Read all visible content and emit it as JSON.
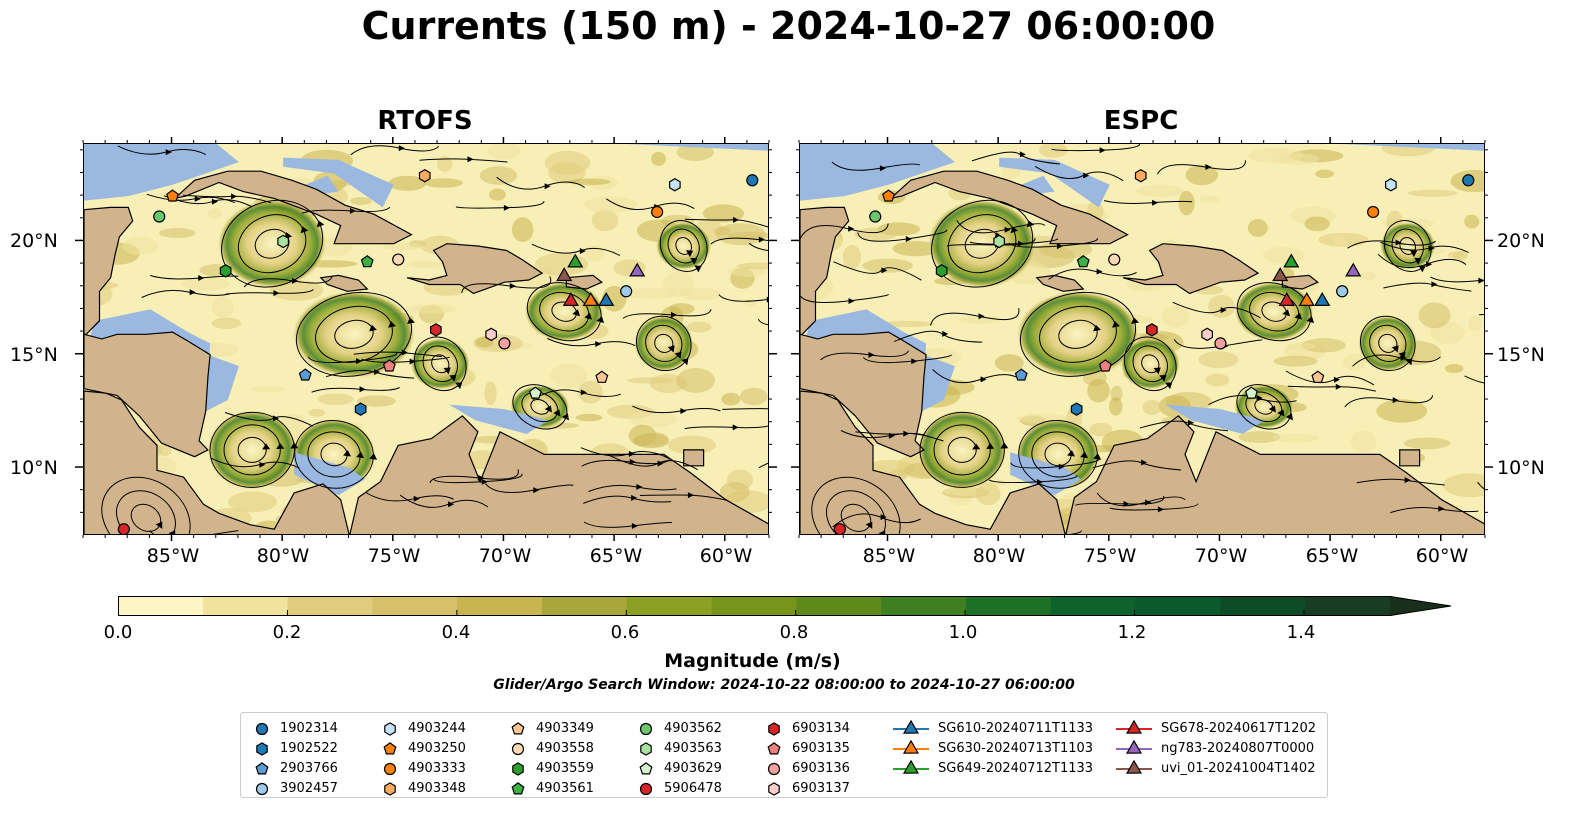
{
  "title": "Currents (150 m) - 2024-10-27 06:00:00",
  "panels": [
    {
      "title": "RTOFS"
    },
    {
      "title": "ESPC"
    }
  ],
  "x_ticks": [
    "85°W",
    "80°W",
    "75°W",
    "70°W",
    "65°W",
    "60°W"
  ],
  "y_ticks": [
    "20°N",
    "15°N",
    "10°N"
  ],
  "colorbar": {
    "label": "Magnitude (m/s)",
    "ticks": [
      "0.0",
      "0.2",
      "0.4",
      "0.6",
      "0.8",
      "1.0",
      "1.2",
      "1.4"
    ],
    "colors": [
      "#fbf6c4",
      "#f1e29e",
      "#e0cc7c",
      "#d6c06a",
      "#c8b450",
      "#a9a63b",
      "#8ca123",
      "#76951a",
      "#5e8a1c",
      "#3f7e21",
      "#1f7027",
      "#0e632d",
      "#0a5a2d",
      "#104b27",
      "#173d22",
      "#1a2f1b"
    ]
  },
  "search_window": "Glider/Argo Search Window: 2024-10-22 08:00:00 to 2024-10-27 06:00:00",
  "colors": {
    "ocean_shallow": "#9ab8e0",
    "land": "#d2b48c",
    "field_low": "#f7efb6",
    "field_high": "#0e632d"
  },
  "legend": [
    {
      "label": "1902314",
      "marker": "circle",
      "color": "#1f77b4"
    },
    {
      "label": "1902522",
      "marker": "hexagon",
      "color": "#1f77b4"
    },
    {
      "label": "2903766",
      "marker": "pentagon",
      "color": "#5b9bd5"
    },
    {
      "label": "3902457",
      "marker": "circle",
      "color": "#9ecae9"
    },
    {
      "label": "4903244",
      "marker": "hexagon",
      "color": "#c6e2f5"
    },
    {
      "label": "4903250",
      "marker": "pentagon",
      "color": "#ff7f0e"
    },
    {
      "label": "4903333",
      "marker": "circle",
      "color": "#ff7f0e"
    },
    {
      "label": "4903348",
      "marker": "hexagon",
      "color": "#ffab5e"
    },
    {
      "label": "4903349",
      "marker": "pentagon",
      "color": "#fdc58f"
    },
    {
      "label": "4903558",
      "marker": "circle",
      "color": "#fdd9b5"
    },
    {
      "label": "4903559",
      "marker": "hexagon",
      "color": "#2ca02c"
    },
    {
      "label": "4903561",
      "marker": "pentagon",
      "color": "#3cb043"
    },
    {
      "label": "4903562",
      "marker": "circle",
      "color": "#6cc66c"
    },
    {
      "label": "4903563",
      "marker": "hexagon",
      "color": "#a9e2a0"
    },
    {
      "label": "4903629",
      "marker": "pentagon",
      "color": "#d4f2cc"
    },
    {
      "label": "5906478",
      "marker": "circle",
      "color": "#d62728"
    },
    {
      "label": "6903134",
      "marker": "hexagon",
      "color": "#d62728"
    },
    {
      "label": "6903135",
      "marker": "pentagon",
      "color": "#f07f80"
    },
    {
      "label": "6903136",
      "marker": "circle",
      "color": "#f4a0a0"
    },
    {
      "label": "6903137",
      "marker": "hexagon",
      "color": "#fbcdcd"
    },
    {
      "label": "SG610-20240711T1133",
      "marker": "triangle",
      "color": "#1f77b4"
    },
    {
      "label": "SG630-20240713T1103",
      "marker": "triangle",
      "color": "#ff7f0e"
    },
    {
      "label": "SG649-20240712T1133",
      "marker": "triangle",
      "color": "#2ca02c"
    },
    {
      "label": "SG678-20240617T1202",
      "marker": "triangle",
      "color": "#d62728"
    },
    {
      "label": "ng783-20240807T0000",
      "marker": "triangle",
      "color": "#9467bd"
    },
    {
      "label": "uvi_01-20241004T1402",
      "marker": "triangle",
      "color": "#8c564b"
    }
  ],
  "observations": [
    {
      "id": "1902314",
      "lon": -58.8,
      "lat": 22.7
    },
    {
      "id": "1902522",
      "lon": -76.5,
      "lat": 12.6
    },
    {
      "id": "2903766",
      "lon": -79.0,
      "lat": 14.1
    },
    {
      "id": "3902457",
      "lon": -64.5,
      "lat": 17.8
    },
    {
      "id": "4903244",
      "lon": -62.3,
      "lat": 22.5
    },
    {
      "id": "4903250",
      "lon": -85.0,
      "lat": 22.0
    },
    {
      "id": "4903333",
      "lon": -63.1,
      "lat": 21.3
    },
    {
      "id": "4903348",
      "lon": -73.6,
      "lat": 22.9
    },
    {
      "id": "4903349",
      "lon": -65.6,
      "lat": 14.0
    },
    {
      "id": "4903558",
      "lon": -74.8,
      "lat": 19.2
    },
    {
      "id": "4903559",
      "lon": -82.6,
      "lat": 18.7
    },
    {
      "id": "4903561",
      "lon": -76.2,
      "lat": 19.1
    },
    {
      "id": "4903562",
      "lon": -85.6,
      "lat": 21.1
    },
    {
      "id": "4903563",
      "lon": -80.0,
      "lat": 20.0
    },
    {
      "id": "4903629",
      "lon": -68.6,
      "lat": 13.3
    },
    {
      "id": "5906478",
      "lon": -87.2,
      "lat": 7.3
    },
    {
      "id": "6903134",
      "lon": -73.1,
      "lat": 16.1
    },
    {
      "id": "6903135",
      "lon": -75.2,
      "lat": 14.5
    },
    {
      "id": "6903136",
      "lon": -70.0,
      "lat": 15.5
    },
    {
      "id": "6903137",
      "lon": -70.6,
      "lat": 15.9
    },
    {
      "id": "SG610-20240711T1133",
      "lon": -65.4,
      "lat": 17.4
    },
    {
      "id": "SG630-20240713T1103",
      "lon": -66.1,
      "lat": 17.4
    },
    {
      "id": "SG649-20240712T1133",
      "lon": -66.8,
      "lat": 19.1
    },
    {
      "id": "SG678-20240617T1202",
      "lon": -67.0,
      "lat": 17.4
    },
    {
      "id": "ng783-20240807T0000",
      "lon": -64.0,
      "lat": 18.7
    },
    {
      "id": "uvi_01-20241004T1402",
      "lon": -67.3,
      "lat": 18.5
    }
  ]
}
